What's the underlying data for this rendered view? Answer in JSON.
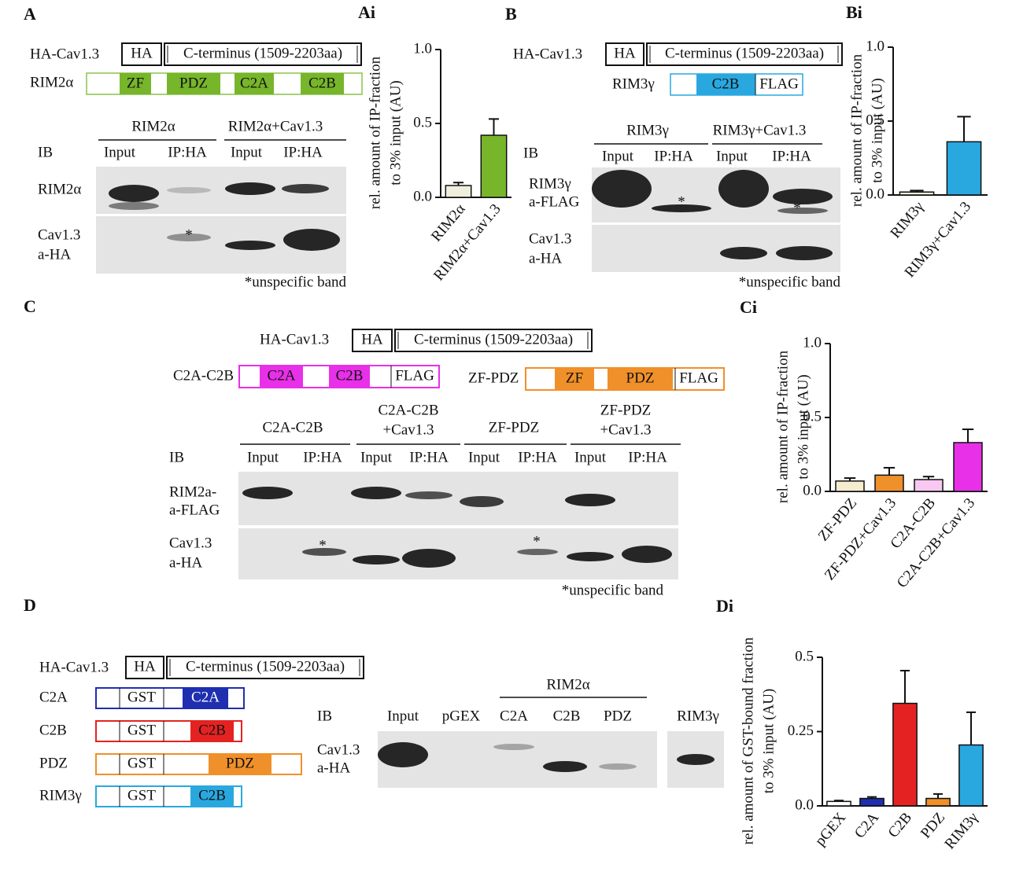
{
  "panel_a": {
    "label": "A",
    "ha_construct": "HA-Cav1.3",
    "ha": "HA",
    "cterm": "C-terminus (1509-2203aa)",
    "rim": "RIM2α",
    "domains": [
      "ZF",
      "PDZ",
      "C2A",
      "C2B"
    ],
    "groups": [
      "RIM2α",
      "RIM2α+Cav1.3"
    ],
    "ib": "IB",
    "lanes": [
      "Input",
      "IP:HA",
      "Input",
      "IP:HA"
    ],
    "rows": [
      [
        "RIM2α"
      ],
      [
        "Cav1.3",
        "a-HA"
      ]
    ],
    "asterisk": "*",
    "note": "*unspecific band"
  },
  "panel_b": {
    "label": "B",
    "ha_construct": "HA-Cav1.3",
    "ha": "HA",
    "cterm": "C-terminus (1509-2203aa)",
    "rim": "RIM3γ",
    "domains": [
      "C2B",
      "FLAG"
    ],
    "groups": [
      "RIM3γ",
      "RIM3γ+Cav1.3"
    ],
    "ib": "IB",
    "lanes": [
      "Input",
      "IP:HA",
      "Input",
      "IP:HA"
    ],
    "rows": [
      [
        "RIM3γ",
        "a-FLAG"
      ],
      [
        "Cav1.3",
        "a-HA"
      ]
    ],
    "asterisk": "*",
    "note": "*unspecific band"
  },
  "panel_c": {
    "label": "C",
    "ha_construct": "HA-Cav1.3",
    "ha": "HA",
    "cterm": "C-terminus (1509-2203aa)",
    "constructs": [
      {
        "name": "C2A-C2B",
        "domains": [
          "C2A",
          "C2B",
          "FLAG"
        ]
      },
      {
        "name": "ZF-PDZ",
        "domains": [
          "ZF",
          "PDZ",
          "FLAG"
        ]
      }
    ],
    "groups": [
      [
        "C2A-C2B"
      ],
      [
        "C2A-C2B",
        "+Cav1.3"
      ],
      [
        "ZF-PDZ"
      ],
      [
        "ZF-PDZ",
        "+Cav1.3"
      ]
    ],
    "ib": "IB",
    "lanes": [
      "Input",
      "IP:HA",
      "Input",
      "IP:HA",
      "Input",
      "IP:HA",
      "Input",
      "IP:HA"
    ],
    "rows": [
      [
        "RIM2a-",
        "a-FLAG"
      ],
      [
        "Cav1.3",
        "a-HA"
      ]
    ],
    "asterisk": "*",
    "note": "*unspecific band"
  },
  "panel_d": {
    "label": "D",
    "ha_construct": "HA-Cav1.3",
    "ha": "HA",
    "cterm": "C-terminus (1509-2203aa)",
    "constructs": [
      {
        "name": "C2A",
        "domains": [
          "GST",
          "C2A"
        ]
      },
      {
        "name": "C2B",
        "domains": [
          "GST",
          "C2B"
        ]
      },
      {
        "name": "PDZ",
        "domains": [
          "GST",
          "PDZ"
        ]
      },
      {
        "name": "RIM3γ",
        "domains": [
          "GST",
          "C2B"
        ]
      }
    ],
    "ib": "IB",
    "group": "RIM2α",
    "lanes": [
      "Input",
      "pGEX",
      "C2A",
      "C2B",
      "PDZ",
      "RIM3γ"
    ],
    "row": [
      "Cav1.3",
      "a-HA"
    ]
  },
  "chart_data": [
    {
      "type": "bar",
      "title": "Ai",
      "y_label": [
        "rel. amount of IP-fraction",
        "to 3% input (AU)"
      ],
      "categories": [
        "RIM2α",
        "RIM2α+Cav1.3"
      ],
      "values": [
        0.08,
        0.42
      ],
      "errors": [
        0.02,
        0.11
      ],
      "colors": [
        "#efeedd",
        "#77b52a"
      ],
      "ylim": [
        0,
        1
      ],
      "yticks": [
        {
          "value": 0,
          "label": "0.0"
        },
        {
          "value": 0.5,
          "label": "0.5"
        },
        {
          "value": 1,
          "label": "1.0"
        }
      ]
    },
    {
      "type": "bar",
      "title": "Bi",
      "y_label": [
        "rel. amount of IP-fraction",
        "to 3% input (AU)"
      ],
      "categories": [
        "RIM3γ",
        "RIM3γ+Cav1.3"
      ],
      "values": [
        0.02,
        0.36
      ],
      "errors": [
        0.01,
        0.17
      ],
      "colors": [
        "#efeedd",
        "#29a8e0"
      ],
      "ylim": [
        0,
        1
      ],
      "yticks": [
        {
          "value": 0,
          "label": "0.0"
        },
        {
          "value": 0.5,
          "label": "0.5"
        },
        {
          "value": 1,
          "label": "1.0"
        }
      ]
    },
    {
      "type": "bar",
      "title": "Ci",
      "y_label": [
        "rel. amount of IP-fraction",
        "to 3% input (AU)"
      ],
      "categories": [
        "ZF-PDZ",
        "ZF-PDZ+Cav1.3",
        "C2A-C2B",
        "C2A-C2B+Cav1.3"
      ],
      "values": [
        0.07,
        0.11,
        0.08,
        0.33
      ],
      "errors": [
        0.02,
        0.05,
        0.02,
        0.09
      ],
      "colors": [
        "#f6eccf",
        "#f0902a",
        "#f8c8f2",
        "#e830e8"
      ],
      "ylim": [
        0,
        1
      ],
      "yticks": [
        {
          "value": 0,
          "label": "0.0"
        },
        {
          "value": 0.5,
          "label": "0.5"
        },
        {
          "value": 1,
          "label": "1.0"
        }
      ]
    },
    {
      "type": "bar",
      "title": "Di",
      "y_label": [
        "rel. amount of GST-bound fraction",
        "to 3% input (AU)"
      ],
      "categories": [
        "pGEX",
        "C2A",
        "C2B",
        "PDZ",
        "RIM3γ"
      ],
      "values": [
        0.015,
        0.025,
        0.345,
        0.025,
        0.205
      ],
      "errors": [
        0.003,
        0.005,
        0.11,
        0.015,
        0.11
      ],
      "colors": [
        "#ffffff",
        "#1f2fb0",
        "#e52222",
        "#f0902a",
        "#29a8e0"
      ],
      "ylim": [
        0,
        0.5
      ],
      "yticks": [
        {
          "value": 0,
          "label": "0.0"
        },
        {
          "value": 0.25,
          "label": "0.25"
        },
        {
          "value": 0.5,
          "label": "0.5"
        }
      ]
    }
  ]
}
